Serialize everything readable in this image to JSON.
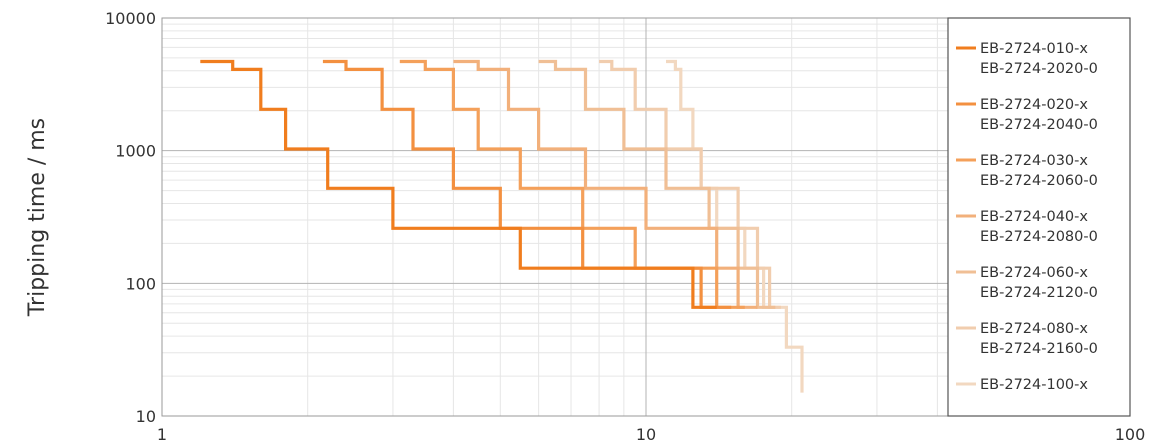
{
  "chart_data": {
    "type": "line",
    "title": "",
    "xlabel": "",
    "ylabel": "Tripping time / ms",
    "x_scale": "log",
    "y_scale": "log",
    "xlim": [
      1,
      100
    ],
    "ylim": [
      10,
      10000
    ],
    "x_ticks": [
      1,
      10,
      100
    ],
    "x_tick_labels": [
      "1",
      "10",
      "100"
    ],
    "y_ticks": [
      10,
      100,
      1000,
      10000
    ],
    "y_tick_labels": [
      "10",
      "100",
      "1000",
      "10000"
    ],
    "grid": true,
    "legend_position": "right",
    "series": [
      {
        "name": "EB-2724-010-x\nEB-2724-2020-0",
        "color": "#f07d1e",
        "x": [
          1.2,
          1.4,
          1.4,
          1.6,
          1.6,
          1.8,
          1.8,
          2.2,
          2.2,
          3.0,
          3.0,
          5.5,
          5.5,
          12.5,
          12.5,
          14
        ],
        "y": [
          4700,
          4700,
          4100,
          4100,
          2050,
          2050,
          1030,
          1030,
          520,
          520,
          260,
          260,
          130,
          130,
          66,
          66
        ]
      },
      {
        "name": "EB-2724-020-x\nEB-2724-2040-0",
        "color": "#f39040",
        "x": [
          2.15,
          2.4,
          2.4,
          2.85,
          2.85,
          3.3,
          3.3,
          4.0,
          4.0,
          5.0,
          5.0,
          7.4,
          7.4,
          13.0,
          13.0,
          15
        ],
        "y": [
          4700,
          4700,
          4100,
          4100,
          2050,
          2050,
          1030,
          1030,
          520,
          520,
          260,
          260,
          130,
          130,
          66,
          66
        ]
      },
      {
        "name": "EB-2724-030-x\nEB-2724-2060-0",
        "color": "#f4a05a",
        "x": [
          3.1,
          3.5,
          3.5,
          4.0,
          4.0,
          4.5,
          4.5,
          5.5,
          5.5,
          7.4,
          7.4,
          9.5,
          9.5,
          14.0,
          14.0,
          16
        ],
        "y": [
          4700,
          4700,
          4100,
          4100,
          2050,
          2050,
          1030,
          1030,
          520,
          520,
          260,
          260,
          130,
          130,
          66,
          66
        ]
      },
      {
        "name": "EB-2724-040-x\nEB-2724-2080-0",
        "color": "#f2b07b",
        "x": [
          4.0,
          4.5,
          4.5,
          5.2,
          5.2,
          6.0,
          6.0,
          7.5,
          7.5,
          10.0,
          10.0,
          14.0,
          14.0,
          15.5,
          15.5,
          17
        ],
        "y": [
          4700,
          4700,
          4100,
          4100,
          2050,
          2050,
          1030,
          1030,
          520,
          520,
          260,
          260,
          130,
          130,
          66,
          66
        ]
      },
      {
        "name": "EB-2724-060-x\nEB-2724-2120-0",
        "color": "#f0bf95",
        "x": [
          6.0,
          6.5,
          6.5,
          7.5,
          7.5,
          9.0,
          9.0,
          11.0,
          11.0,
          13.5,
          13.5,
          15.5,
          15.5,
          17.0,
          17.0,
          18.5
        ],
        "y": [
          4700,
          4700,
          4100,
          4100,
          2050,
          2050,
          1030,
          1030,
          520,
          520,
          260,
          260,
          130,
          130,
          66,
          66
        ]
      },
      {
        "name": "EB-2724-080-x\nEB-2724-2160-0",
        "color": "#f1cdae",
        "x": [
          8.0,
          8.5,
          8.5,
          9.5,
          9.5,
          11.0,
          11.0,
          13.0,
          13.0,
          15.5,
          15.5,
          17.0,
          17.0,
          18.0,
          18.0,
          19
        ],
        "y": [
          4700,
          4700,
          4100,
          4100,
          2050,
          2050,
          1030,
          1030,
          520,
          520,
          260,
          260,
          130,
          130,
          66,
          66
        ]
      },
      {
        "name": "EB-2724-100-x",
        "color": "#f2d8c0",
        "x": [
          11.0,
          11.5,
          11.5,
          11.8,
          11.8,
          12.5,
          12.5,
          13.0,
          13.0,
          14.0,
          14.0,
          16.0,
          16.0,
          17.5,
          17.5,
          19.5,
          19.5,
          21.0,
          21.0
        ],
        "y": [
          4700,
          4700,
          4100,
          4100,
          2050,
          2050,
          1030,
          1030,
          520,
          520,
          260,
          260,
          130,
          130,
          66,
          66,
          33,
          33,
          15
        ]
      }
    ]
  }
}
